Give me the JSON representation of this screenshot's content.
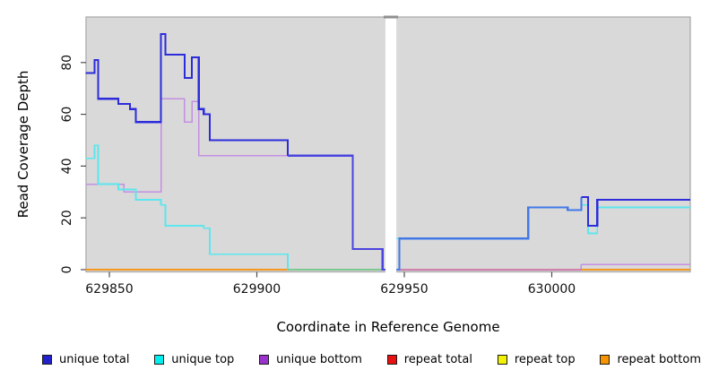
{
  "chart_data": {
    "type": "line",
    "title": "",
    "xlabel": "Coordinate in Reference Genome",
    "ylabel": "Read Coverage Depth",
    "xlim": [
      629842,
      630047
    ],
    "ylim": [
      0,
      98
    ],
    "x_ticks": [
      629850,
      629900,
      629950,
      630000
    ],
    "y_ticks": [
      0,
      20,
      40,
      60,
      80
    ],
    "panel_bg": "#D9D9D9",
    "panel_border": "#ABABAB",
    "grid": "off",
    "legend_position": "bottom",
    "gap": {
      "x1": 629943.6,
      "x2": 629947.3
    },
    "legend": [
      {
        "label": "unique total",
        "color": "#2222CC"
      },
      {
        "label": "unique top",
        "color": "#00EEEE"
      },
      {
        "label": "unique bottom",
        "color": "#9933CC"
      },
      {
        "label": "repeat total",
        "color": "#E81010"
      },
      {
        "label": "repeat top",
        "color": "#F2F200"
      },
      {
        "label": "repeat bottom",
        "color": "#F59300"
      }
    ],
    "series": [
      {
        "name": "repeat top",
        "legend_color": "#F2F200",
        "stroke_width": 1.4,
        "segments": [
          {
            "color": null,
            "steps": [
              [
                629842,
                629943.6,
                0
              ]
            ]
          },
          {
            "color": null,
            "steps": [
              [
                629947.3,
                630047,
                0
              ]
            ]
          }
        ]
      },
      {
        "name": "unique bottom",
        "legend_color": "#9933CC",
        "stroke_width": 1.5,
        "segments": [
          {
            "color": "#C48FE3",
            "steps": [
              [
                629842,
                629855,
                33
              ],
              [
                629855,
                629867.5,
                30
              ],
              [
                629867.5,
                629875.5,
                66
              ],
              [
                629875.5,
                629878,
                57
              ],
              [
                629878,
                629880.3,
                65
              ],
              [
                629880.3,
                629932.5,
                44
              ],
              [
                629932.5,
                629942.6,
                8
              ],
              [
                629942.6,
                629943.6,
                0
              ]
            ]
          },
          {
            "color": "#C48FE3",
            "steps": [
              [
                629947.3,
                630010,
                0
              ]
            ]
          },
          {
            "color": "#C48FE3",
            "steps": [
              [
                630010,
                630047,
                2
              ]
            ]
          }
        ]
      },
      {
        "name": "repeat bottom",
        "legend_color": "#F59300",
        "stroke_width": 1.8,
        "segments": [
          {
            "color": "#F5971E",
            "steps": [
              [
                629842,
                629910.5,
                0
              ]
            ]
          },
          {
            "color": "#F5971E",
            "steps": [
              [
                630010,
                630047,
                0
              ]
            ]
          }
        ]
      },
      {
        "name": "repeat total",
        "legend_color": "#E81010",
        "stroke_width": 1.4,
        "segments": [
          {
            "color": null,
            "steps": [
              [
                629842,
                629943.6,
                0
              ]
            ]
          },
          {
            "color": "#CE4577",
            "steps": [
              [
                629947.3,
                630010,
                0
              ]
            ]
          },
          {
            "color": null,
            "steps": [
              [
                630010,
                630047,
                0
              ]
            ]
          }
        ]
      },
      {
        "name": "unique top",
        "legend_color": "#00EEEE",
        "stroke_width": 1.8,
        "segments": [
          {
            "color": "#5CE6ED",
            "steps": [
              [
                629842,
                629845,
                43
              ],
              [
                629845,
                629846.2,
                48
              ],
              [
                629846.2,
                629853,
                33
              ],
              [
                629853,
                629859,
                31
              ],
              [
                629859,
                629867.5,
                27
              ],
              [
                629867.5,
                629869,
                25
              ],
              [
                629869,
                629882,
                17
              ],
              [
                629882,
                629884,
                16
              ],
              [
                629884,
                629910.5,
                6
              ]
            ]
          },
          {
            "color": "#7CC98F",
            "steps": [
              [
                629910.5,
                629943.6,
                0
              ]
            ]
          },
          {
            "color": "#5CE6ED",
            "steps": [
              [
                629947.3,
                629992,
                12
              ],
              [
                629992,
                630005.4,
                24
              ],
              [
                630005.4,
                630010,
                23
              ],
              [
                630010,
                630012.3,
                25
              ],
              [
                630012.3,
                630015.4,
                14
              ],
              [
                630015.4,
                630047,
                24
              ]
            ]
          }
        ]
      },
      {
        "name": "unique total",
        "legend_color": "#2222CC",
        "stroke_width": 2.2,
        "segments": [
          {
            "color": "#2C2CDB",
            "steps": [
              [
                629842,
                629845,
                76
              ],
              [
                629845,
                629846.2,
                81
              ],
              [
                629846.2,
                629853,
                66
              ],
              [
                629853,
                629857,
                64
              ],
              [
                629857,
                629859,
                62
              ],
              [
                629859,
                629867.5,
                57
              ],
              [
                629867.5,
                629869,
                91
              ],
              [
                629869,
                629875.5,
                83
              ],
              [
                629875.5,
                629878,
                74
              ],
              [
                629878,
                629880.3,
                82
              ],
              [
                629880.3,
                629882,
                62
              ],
              [
                629882,
                629884,
                60
              ],
              [
                629884,
                629910.5,
                50
              ]
            ]
          },
          {
            "color": "#4B44DE",
            "steps": [
              [
                629910.5,
                629932.5,
                44
              ],
              [
                629932.5,
                629942.6,
                8
              ],
              [
                629942.6,
                629943.6,
                0
              ]
            ]
          },
          {
            "color": "#4379E7",
            "steps": [
              [
                629947.3,
                629948.3,
                0
              ],
              [
                629948.3,
                629992,
                12
              ],
              [
                629992,
                630005.4,
                24
              ],
              [
                630005.4,
                630010,
                23
              ]
            ]
          },
          {
            "color": "#2C2CDB",
            "steps": [
              [
                630010,
                630012.3,
                28
              ],
              [
                630012.3,
                630015.4,
                17
              ],
              [
                630015.4,
                630047,
                27
              ]
            ]
          }
        ]
      }
    ]
  }
}
